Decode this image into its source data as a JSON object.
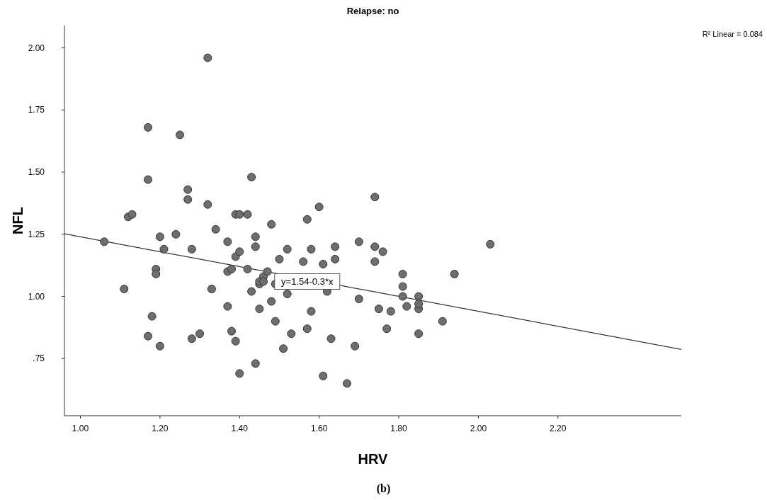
{
  "chart_data": {
    "type": "scatter",
    "title": "Relapse: no",
    "xlabel": "HRV",
    "ylabel": "NFL",
    "xlim": [
      0.96,
      2.51
    ],
    "ylim": [
      0.52,
      2.09
    ],
    "xticks": [
      {
        "value": 1,
        "label": "1.00"
      },
      {
        "value": 1.2,
        "label": "1.20"
      },
      {
        "value": 1.4,
        "label": "1.40"
      },
      {
        "value": 1.6,
        "label": "1.60"
      },
      {
        "value": 1.8,
        "label": "1.80"
      },
      {
        "value": 2,
        "label": "2.00"
      },
      {
        "value": 2.2,
        "label": "2.20"
      }
    ],
    "yticks": [
      {
        "value": 0.75,
        "label": ".75"
      },
      {
        "value": 1,
        "label": "1.00"
      },
      {
        "value": 1.25,
        "label": "1.25"
      },
      {
        "value": 1.5,
        "label": "1.50"
      },
      {
        "value": 1.75,
        "label": "1.75"
      },
      {
        "value": 2,
        "label": "2.00"
      }
    ],
    "series": [
      {
        "marker": "circle",
        "color": "#6e6e6e",
        "x": [
          1.06,
          1.11,
          1.12,
          1.13,
          1.17,
          1.17,
          1.17,
          1.18,
          1.19,
          1.19,
          1.2,
          1.21,
          1.2,
          1.24,
          1.25,
          1.27,
          1.27,
          1.28,
          1.28,
          1.3,
          1.32,
          1.32,
          1.33,
          1.34,
          1.37,
          1.37,
          1.37,
          1.38,
          1.38,
          1.39,
          1.39,
          1.39,
          1.4,
          1.4,
          1.4,
          1.42,
          1.42,
          1.43,
          1.43,
          1.44,
          1.44,
          1.44,
          1.45,
          1.45,
          1.45,
          1.46,
          1.46,
          1.47,
          1.48,
          1.48,
          1.49,
          1.49,
          1.5,
          1.52,
          1.52,
          1.51,
          1.53,
          1.56,
          1.57,
          1.58,
          1.58,
          1.57,
          1.6,
          1.61,
          1.61,
          1.62,
          1.63,
          1.64,
          1.64,
          1.67,
          1.69,
          1.7,
          1.7,
          1.74,
          1.74,
          1.74,
          1.75,
          1.76,
          1.77,
          1.78,
          1.81,
          1.81,
          1.81,
          1.82,
          1.85,
          1.85,
          1.85,
          1.85,
          1.91,
          1.94,
          2.03
        ],
        "values": [
          1.22,
          1.03,
          1.32,
          1.33,
          1.47,
          1.68,
          0.84,
          0.92,
          1.11,
          1.09,
          1.24,
          1.19,
          0.8,
          1.25,
          1.65,
          1.43,
          1.39,
          1.19,
          0.83,
          0.85,
          1.96,
          1.37,
          1.03,
          1.27,
          1.22,
          1.1,
          0.96,
          0.86,
          1.11,
          1.16,
          0.82,
          1.33,
          1.33,
          1.18,
          0.69,
          1.33,
          1.11,
          1.02,
          1.48,
          1.2,
          1.24,
          0.73,
          1.05,
          1.06,
          0.95,
          1.08,
          1.06,
          1.1,
          0.98,
          1.29,
          1.05,
          0.9,
          1.15,
          1.19,
          1.01,
          0.79,
          0.85,
          1.14,
          1.31,
          1.19,
          0.94,
          0.87,
          1.36,
          1.13,
          0.68,
          1.02,
          0.83,
          1.2,
          1.15,
          0.65,
          0.8,
          1.22,
          0.99,
          1.4,
          1.2,
          1.14,
          0.95,
          1.18,
          0.87,
          0.94,
          1.04,
          1,
          1.09,
          0.96,
          0.95,
          1,
          0.97,
          0.85,
          0.9,
          1.09,
          1.21
        ]
      },
      {
        "type": "line",
        "color": "#333333",
        "x": [
          0.96,
          2.51
        ],
        "values": [
          1.252,
          0.787
        ]
      }
    ],
    "annotations": [
      "R² Linear = 0.084",
      {
        "text": "y=1.54-0.3*x",
        "x": 1.57,
        "y": 1.06
      },
      "(b)"
    ]
  }
}
